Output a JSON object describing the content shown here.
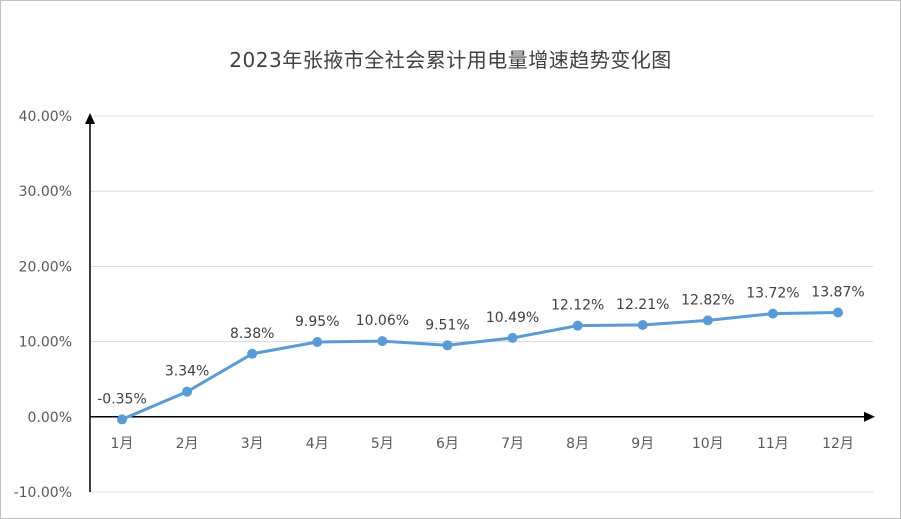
{
  "chart_data": {
    "type": "line",
    "title": "2023年张掖市全社会累计用电量增速趋势变化图",
    "categories": [
      "1月",
      "2月",
      "3月",
      "4月",
      "5月",
      "6月",
      "7月",
      "8月",
      "9月",
      "10月",
      "11月",
      "12月"
    ],
    "series": [
      {
        "values": [
          -0.35,
          3.34,
          8.38,
          9.95,
          10.06,
          9.51,
          10.49,
          12.12,
          12.21,
          12.82,
          13.72,
          13.87
        ],
        "labels": [
          "-0.35%",
          "3.34%",
          "8.38%",
          "9.95%",
          "10.06%",
          "9.51%",
          "10.49%",
          "12.12%",
          "12.21%",
          "12.82%",
          "13.72%",
          "13.87%"
        ],
        "color": "#5b9bd5"
      }
    ],
    "yticks": [
      "-10.00%",
      "0.00%",
      "10.00%",
      "20.00%",
      "30.00%",
      "40.00%"
    ],
    "ylim": [
      -10,
      40
    ],
    "grid": true,
    "gridColor": "#d9d9d9",
    "axisColor": "#000000"
  }
}
